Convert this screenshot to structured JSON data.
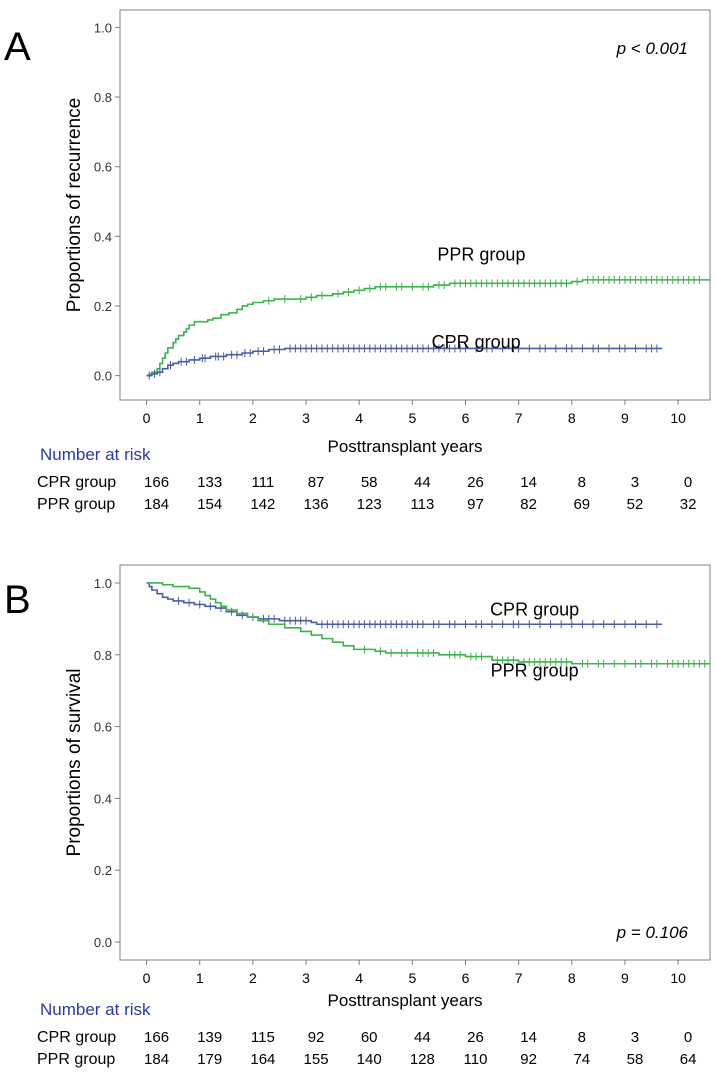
{
  "chart_data": [
    {
      "panel_label": "A",
      "type": "line",
      "step": true,
      "ylabel": "Proportions of recurrence",
      "xlabel": "Posttransplant years",
      "xlim": [
        -0.5,
        10.6
      ],
      "ylim": [
        -0.07,
        1.05
      ],
      "x_ticks": [
        0,
        1,
        2,
        3,
        4,
        5,
        6,
        7,
        8,
        9,
        10
      ],
      "y_ticks": [
        0.0,
        0.2,
        0.4,
        0.6,
        0.8,
        1.0
      ],
      "y_tick_labels": [
        "0.0",
        "0.2",
        "0.4",
        "0.6",
        "0.8",
        "1.0"
      ],
      "grid": false,
      "annotation": {
        "text": "p < 0.001",
        "position": "top-right"
      },
      "series": [
        {
          "name": "PPR group",
          "color": "#3cb44b",
          "label_position": {
            "x": 6.3,
            "y": 0.33
          },
          "points": [
            [
              0,
              0
            ],
            [
              0.05,
              0.005
            ],
            [
              0.1,
              0.01
            ],
            [
              0.2,
              0.02
            ],
            [
              0.25,
              0.035
            ],
            [
              0.3,
              0.05
            ],
            [
              0.35,
              0.065
            ],
            [
              0.4,
              0.08
            ],
            [
              0.5,
              0.095
            ],
            [
              0.55,
              0.105
            ],
            [
              0.6,
              0.115
            ],
            [
              0.7,
              0.125
            ],
            [
              0.75,
              0.135
            ],
            [
              0.8,
              0.145
            ],
            [
              0.9,
              0.155
            ],
            [
              1.15,
              0.16
            ],
            [
              1.25,
              0.165
            ],
            [
              1.4,
              0.175
            ],
            [
              1.55,
              0.18
            ],
            [
              1.7,
              0.19
            ],
            [
              1.8,
              0.2
            ],
            [
              1.9,
              0.205
            ],
            [
              2.0,
              0.21
            ],
            [
              2.2,
              0.215
            ],
            [
              2.4,
              0.22
            ],
            [
              3.0,
              0.225
            ],
            [
              3.2,
              0.23
            ],
            [
              3.5,
              0.235
            ],
            [
              3.7,
              0.24
            ],
            [
              3.9,
              0.245
            ],
            [
              4.1,
              0.25
            ],
            [
              4.3,
              0.255
            ],
            [
              5.4,
              0.26
            ],
            [
              5.7,
              0.265
            ],
            [
              8.0,
              0.27
            ],
            [
              8.2,
              0.275
            ],
            [
              10.6,
              0.275
            ]
          ],
          "censor_x": [
            2.3,
            2.6,
            2.9,
            3.1,
            3.3,
            3.6,
            3.8,
            4.0,
            4.2,
            4.4,
            4.5,
            4.7,
            4.8,
            5.0,
            5.2,
            5.3,
            5.5,
            5.6,
            5.8,
            5.9,
            6.0,
            6.1,
            6.2,
            6.3,
            6.4,
            6.5,
            6.6,
            6.7,
            6.8,
            6.9,
            7.0,
            7.1,
            7.2,
            7.3,
            7.4,
            7.5,
            7.6,
            7.7,
            7.8,
            7.9,
            8.1,
            8.3,
            8.4,
            8.5,
            8.6,
            8.7,
            8.8,
            8.9,
            9.0,
            9.1,
            9.2,
            9.3,
            9.4,
            9.5,
            9.6,
            9.7,
            9.8,
            9.9,
            10.0,
            10.1,
            10.2,
            10.3,
            10.4
          ]
        },
        {
          "name": "CPR group",
          "color": "#4a5ba8",
          "label_position": {
            "x": 6.2,
            "y": 0.08
          },
          "points": [
            [
              0,
              0
            ],
            [
              0.1,
              0.005
            ],
            [
              0.2,
              0.01
            ],
            [
              0.3,
              0.02
            ],
            [
              0.4,
              0.03
            ],
            [
              0.5,
              0.035
            ],
            [
              0.6,
              0.04
            ],
            [
              0.8,
              0.045
            ],
            [
              1.0,
              0.05
            ],
            [
              1.2,
              0.055
            ],
            [
              1.5,
              0.06
            ],
            [
              1.8,
              0.065
            ],
            [
              2.0,
              0.07
            ],
            [
              2.3,
              0.075
            ],
            [
              2.6,
              0.078
            ],
            [
              9.7,
              0.078
            ]
          ],
          "censor_x": [
            0.05,
            0.15,
            0.25,
            0.45,
            0.65,
            0.75,
            0.9,
            1.05,
            1.1,
            1.3,
            1.35,
            1.45,
            1.6,
            1.7,
            1.85,
            1.95,
            2.1,
            2.2,
            2.4,
            2.5,
            2.7,
            2.8,
            2.9,
            3.0,
            3.1,
            3.2,
            3.3,
            3.4,
            3.5,
            3.6,
            3.7,
            3.8,
            3.9,
            4.0,
            4.1,
            4.2,
            4.3,
            4.4,
            4.5,
            4.6,
            4.7,
            4.8,
            4.9,
            5.0,
            5.1,
            5.2,
            5.3,
            5.4,
            5.5,
            5.6,
            5.7,
            5.8,
            5.9,
            6.0,
            6.2,
            6.4,
            6.5,
            6.7,
            6.9,
            7.0,
            7.2,
            7.4,
            7.5,
            7.7,
            7.9,
            8.0,
            8.2,
            8.4,
            8.5,
            8.7,
            8.9,
            9.0,
            9.2,
            9.4,
            9.5,
            9.6
          ]
        }
      ],
      "risk_table": {
        "title": "Number at risk",
        "rows": [
          {
            "label": "CPR group",
            "values": [
              "166",
              "133",
              "111",
              "87",
              "58",
              "44",
              "26",
              "14",
              "8",
              "3",
              "0"
            ]
          },
          {
            "label": "PPR group",
            "values": [
              "184",
              "154",
              "142",
              "136",
              "123",
              "113",
              "97",
              "82",
              "69",
              "52",
              "32"
            ]
          }
        ]
      }
    },
    {
      "panel_label": "B",
      "type": "line",
      "step": true,
      "ylabel": "Proportions of survival",
      "xlabel": "Posttransplant years",
      "xlim": [
        -0.5,
        10.6
      ],
      "ylim": [
        -0.05,
        1.05
      ],
      "x_ticks": [
        0,
        1,
        2,
        3,
        4,
        5,
        6,
        7,
        8,
        9,
        10
      ],
      "y_ticks": [
        0.0,
        0.2,
        0.4,
        0.6,
        0.8,
        1.0
      ],
      "y_tick_labels": [
        "0.0",
        "0.2",
        "0.4",
        "0.6",
        "0.8",
        "1.0"
      ],
      "grid": false,
      "annotation": {
        "text": "p = 0.106",
        "position": "bottom-right"
      },
      "series": [
        {
          "name": "CPR group",
          "color": "#4a5ba8",
          "label_position": {
            "x": 7.3,
            "y": 0.91
          },
          "points": [
            [
              0,
              1.0
            ],
            [
              0.05,
              0.99
            ],
            [
              0.1,
              0.98
            ],
            [
              0.2,
              0.97
            ],
            [
              0.3,
              0.96
            ],
            [
              0.4,
              0.955
            ],
            [
              0.5,
              0.95
            ],
            [
              0.7,
              0.945
            ],
            [
              0.9,
              0.94
            ],
            [
              1.1,
              0.935
            ],
            [
              1.3,
              0.93
            ],
            [
              1.5,
              0.92
            ],
            [
              1.7,
              0.91
            ],
            [
              1.9,
              0.905
            ],
            [
              2.1,
              0.9
            ],
            [
              2.5,
              0.895
            ],
            [
              3.1,
              0.89
            ],
            [
              3.2,
              0.885
            ],
            [
              9.7,
              0.885
            ]
          ],
          "censor_x": [
            0.6,
            0.8,
            1.0,
            1.2,
            1.4,
            1.6,
            1.8,
            2.0,
            2.2,
            2.3,
            2.4,
            2.6,
            2.7,
            2.8,
            2.9,
            3.0,
            3.3,
            3.4,
            3.5,
            3.6,
            3.7,
            3.8,
            3.9,
            4.0,
            4.1,
            4.2,
            4.3,
            4.4,
            4.5,
            4.6,
            4.7,
            4.8,
            4.9,
            5.0,
            5.1,
            5.2,
            5.4,
            5.5,
            5.7,
            5.8,
            6.0,
            6.2,
            6.3,
            6.5,
            6.7,
            6.9,
            7.0,
            7.2,
            7.4,
            7.6,
            7.8,
            8.0,
            8.2,
            8.4,
            8.6,
            8.8,
            9.0,
            9.2,
            9.4,
            9.6
          ]
        },
        {
          "name": "PPR group",
          "color": "#3cb44b",
          "label_position": {
            "x": 7.3,
            "y": 0.74
          },
          "points": [
            [
              0,
              1.0
            ],
            [
              0.3,
              0.995
            ],
            [
              0.5,
              0.99
            ],
            [
              0.8,
              0.985
            ],
            [
              1.0,
              0.975
            ],
            [
              1.1,
              0.965
            ],
            [
              1.2,
              0.955
            ],
            [
              1.3,
              0.945
            ],
            [
              1.4,
              0.935
            ],
            [
              1.5,
              0.925
            ],
            [
              1.7,
              0.915
            ],
            [
              1.9,
              0.905
            ],
            [
              2.1,
              0.895
            ],
            [
              2.3,
              0.885
            ],
            [
              2.6,
              0.875
            ],
            [
              2.9,
              0.865
            ],
            [
              3.1,
              0.855
            ],
            [
              3.3,
              0.845
            ],
            [
              3.5,
              0.835
            ],
            [
              3.7,
              0.825
            ],
            [
              3.9,
              0.815
            ],
            [
              4.3,
              0.81
            ],
            [
              4.5,
              0.805
            ],
            [
              5.5,
              0.8
            ],
            [
              6.0,
              0.795
            ],
            [
              6.5,
              0.785
            ],
            [
              7.0,
              0.78
            ],
            [
              8.0,
              0.775
            ],
            [
              10.6,
              0.775
            ]
          ],
          "censor_x": [
            4.1,
            4.4,
            4.6,
            4.8,
            4.9,
            5.1,
            5.2,
            5.3,
            5.4,
            5.7,
            5.8,
            5.9,
            6.1,
            6.2,
            6.3,
            6.6,
            6.7,
            6.8,
            6.9,
            7.1,
            7.2,
            7.3,
            7.4,
            7.5,
            7.6,
            7.7,
            7.8,
            7.9,
            8.2,
            8.3,
            8.5,
            8.6,
            8.8,
            9.0,
            9.2,
            9.3,
            9.5,
            9.6,
            9.8,
            9.9,
            10.0,
            10.1,
            10.2,
            10.3,
            10.4,
            10.5
          ]
        }
      ],
      "risk_table": {
        "title": "Number at risk",
        "rows": [
          {
            "label": "CPR group",
            "values": [
              "166",
              "139",
              "115",
              "92",
              "60",
              "44",
              "26",
              "14",
              "8",
              "3",
              "0"
            ]
          },
          {
            "label": "PPR group",
            "values": [
              "184",
              "179",
              "164",
              "155",
              "140",
              "128",
              "110",
              "92",
              "74",
              "58",
              "64"
            ]
          }
        ]
      }
    }
  ]
}
